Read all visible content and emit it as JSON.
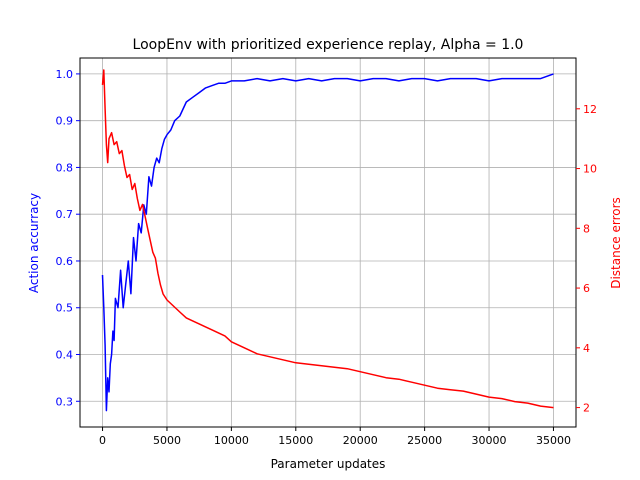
{
  "chart_data": {
    "type": "line",
    "title": "LoopEnv with prioritized experience replay, Alpha = 1.0",
    "xlabel": "Parameter updates",
    "ylabel_left": "Action accurracy",
    "ylabel_right": "Distance errors",
    "xlim": [
      -1750,
      36750
    ],
    "ylim_left": [
      0.245,
      1.034
    ],
    "ylim_right": [
      1.35,
      13.7
    ],
    "x_ticks": [
      0,
      5000,
      10000,
      15000,
      20000,
      25000,
      30000,
      35000
    ],
    "y_ticks_left": [
      0.3,
      0.4,
      0.5,
      0.6,
      0.7,
      0.8,
      0.9,
      1.0
    ],
    "y_ticks_right": [
      2,
      4,
      6,
      8,
      10,
      12
    ],
    "grid": true,
    "colors": {
      "left_axis": "#0000ff",
      "right_axis": "#ff0000"
    },
    "series": [
      {
        "axis": "left",
        "color": "#0000ff",
        "x": [
          0,
          100,
          200,
          300,
          400,
          500,
          600,
          700,
          800,
          900,
          1000,
          1200,
          1400,
          1600,
          1800,
          2000,
          2200,
          2400,
          2600,
          2800,
          3000,
          3200,
          3400,
          3600,
          3800,
          4000,
          4200,
          4400,
          4600,
          4800,
          5000,
          5300,
          5600,
          6000,
          6500,
          7000,
          7500,
          8000,
          8500,
          9000,
          9500,
          10000,
          11000,
          12000,
          13000,
          14000,
          15000,
          16000,
          17000,
          18000,
          19000,
          20000,
          21000,
          22000,
          23000,
          24000,
          25000,
          26000,
          27000,
          28000,
          29000,
          30000,
          31000,
          32000,
          33000,
          34000,
          35000
        ],
        "y": [
          0.57,
          0.5,
          0.42,
          0.28,
          0.35,
          0.32,
          0.38,
          0.4,
          0.45,
          0.43,
          0.52,
          0.5,
          0.58,
          0.5,
          0.55,
          0.6,
          0.53,
          0.65,
          0.6,
          0.68,
          0.66,
          0.72,
          0.7,
          0.78,
          0.76,
          0.8,
          0.82,
          0.81,
          0.84,
          0.86,
          0.87,
          0.88,
          0.9,
          0.91,
          0.94,
          0.95,
          0.96,
          0.97,
          0.975,
          0.98,
          0.98,
          0.985,
          0.985,
          0.99,
          0.985,
          0.99,
          0.985,
          0.99,
          0.985,
          0.99,
          0.99,
          0.985,
          0.99,
          0.99,
          0.985,
          0.99,
          0.99,
          0.985,
          0.99,
          0.99,
          0.99,
          0.985,
          0.99,
          0.99,
          0.99,
          0.99,
          1.0
        ]
      },
      {
        "axis": "right",
        "color": "#ff0000",
        "x": [
          0,
          100,
          200,
          300,
          400,
          500,
          700,
          900,
          1100,
          1300,
          1500,
          1700,
          1900,
          2100,
          2300,
          2500,
          2700,
          2900,
          3100,
          3300,
          3500,
          3700,
          3900,
          4100,
          4300,
          4500,
          4700,
          5000,
          5500,
          6000,
          6500,
          7000,
          7500,
          8000,
          8500,
          9000,
          9500,
          10000,
          11000,
          12000,
          13000,
          14000,
          15000,
          16000,
          17000,
          18000,
          19000,
          20000,
          21000,
          22000,
          23000,
          24000,
          25000,
          26000,
          27000,
          28000,
          29000,
          30000,
          31000,
          32000,
          33000,
          34000,
          35000
        ],
        "y": [
          12.8,
          13.3,
          12.0,
          10.8,
          10.2,
          11.0,
          11.2,
          10.8,
          10.9,
          10.5,
          10.6,
          10.1,
          9.7,
          9.8,
          9.3,
          9.5,
          9.0,
          8.6,
          8.8,
          8.4,
          8.0,
          7.6,
          7.2,
          7.0,
          6.5,
          6.1,
          5.8,
          5.6,
          5.4,
          5.2,
          5.0,
          4.9,
          4.8,
          4.7,
          4.6,
          4.5,
          4.4,
          4.2,
          4.0,
          3.8,
          3.7,
          3.6,
          3.5,
          3.45,
          3.4,
          3.35,
          3.3,
          3.2,
          3.1,
          3.0,
          2.95,
          2.85,
          2.75,
          2.65,
          2.6,
          2.55,
          2.45,
          2.35,
          2.3,
          2.2,
          2.15,
          2.05,
          2.0
        ]
      }
    ]
  }
}
